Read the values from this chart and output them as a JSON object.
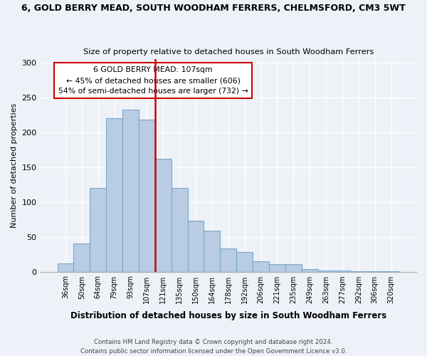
{
  "title": "6, GOLD BERRY MEAD, SOUTH WOODHAM FERRERS, CHELMSFORD, CM3 5WT",
  "subtitle": "Size of property relative to detached houses in South Woodham Ferrers",
  "xlabel": "Distribution of detached houses by size in South Woodham Ferrers",
  "ylabel": "Number of detached properties",
  "bar_labels": [
    "36sqm",
    "50sqm",
    "64sqm",
    "79sqm",
    "93sqm",
    "107sqm",
    "121sqm",
    "135sqm",
    "150sqm",
    "164sqm",
    "178sqm",
    "192sqm",
    "206sqm",
    "221sqm",
    "235sqm",
    "249sqm",
    "263sqm",
    "277sqm",
    "292sqm",
    "306sqm",
    "320sqm"
  ],
  "bar_values": [
    12,
    40,
    120,
    220,
    232,
    218,
    162,
    120,
    73,
    59,
    33,
    28,
    15,
    11,
    11,
    4,
    2,
    2,
    1,
    1,
    1
  ],
  "bar_color": "#b8cce4",
  "bar_edge_color": "#7ba7cb",
  "vline_x": 5,
  "vline_color": "#cc0000",
  "annotation_title": "6 GOLD BERRY MEAD: 107sqm",
  "annotation_line1": "← 45% of detached houses are smaller (606)",
  "annotation_line2": "54% of semi-detached houses are larger (732) →",
  "annotation_box_color": "#cc0000",
  "ylim": [
    0,
    305
  ],
  "yticks": [
    0,
    50,
    100,
    150,
    200,
    250,
    300
  ],
  "footnote1": "Contains HM Land Registry data © Crown copyright and database right 2024.",
  "footnote2": "Contains public sector information licensed under the Open Government Licence v3.0.",
  "background_color": "#eef2f8"
}
